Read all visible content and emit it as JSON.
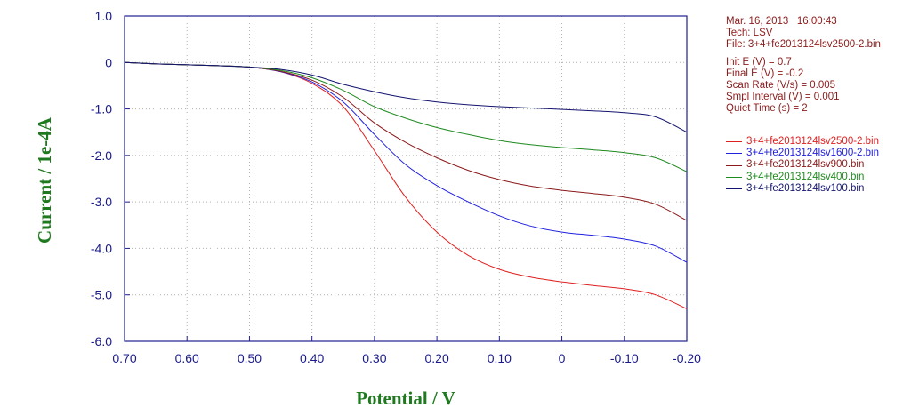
{
  "info": {
    "date_line": "Mar. 16, 2013   16:00:43",
    "tech_line": "Tech: LSV",
    "file_line": "File: 3+4+fe2013124lsv2500-2.bin",
    "init_e": "Init E (V) = 0.7",
    "final_e": "Final E (V) = -0.2",
    "scan_rate": "Scan Rate (V/s) = 0.005",
    "smpl_interval": "Smpl Interval (V) = 0.001",
    "quiet_time": "Quiet Time (s) = 2"
  },
  "chart_data": {
    "type": "line",
    "title": "",
    "xlabel": "Potential / V",
    "ylabel": "Current / 1e-4A",
    "xlim": [
      0.7,
      -0.2
    ],
    "ylim": [
      -6.0,
      1.0
    ],
    "x_reversed": true,
    "grid": "dotted",
    "x_ticks": [
      {
        "value": 0.7,
        "label": "0.70"
      },
      {
        "value": 0.6,
        "label": "0.60"
      },
      {
        "value": 0.5,
        "label": "0.50"
      },
      {
        "value": 0.4,
        "label": "0.40"
      },
      {
        "value": 0.3,
        "label": "0.30"
      },
      {
        "value": 0.2,
        "label": "0.20"
      },
      {
        "value": 0.1,
        "label": "0.10"
      },
      {
        "value": 0.0,
        "label": "0"
      },
      {
        "value": -0.1,
        "label": "-0.10"
      },
      {
        "value": -0.2,
        "label": "-0.20"
      }
    ],
    "y_ticks": [
      {
        "value": 1.0,
        "label": "1.0"
      },
      {
        "value": 0.0,
        "label": "0"
      },
      {
        "value": -1.0,
        "label": "-1.0"
      },
      {
        "value": -2.0,
        "label": "-2.0"
      },
      {
        "value": -3.0,
        "label": "-3.0"
      },
      {
        "value": -4.0,
        "label": "-4.0"
      },
      {
        "value": -5.0,
        "label": "-5.0"
      },
      {
        "value": -6.0,
        "label": "-6.0"
      }
    ],
    "legend_position": "right",
    "series": [
      {
        "name": "3+4+fe2013124lsv2500-2.bin",
        "color": "#e02020",
        "x": [
          0.7,
          0.65,
          0.6,
          0.55,
          0.5,
          0.45,
          0.4,
          0.35,
          0.3,
          0.25,
          0.2,
          0.15,
          0.1,
          0.05,
          0.0,
          -0.05,
          -0.1,
          -0.15,
          -0.2
        ],
        "y": [
          0.0,
          -0.03,
          -0.05,
          -0.07,
          -0.1,
          -0.2,
          -0.45,
          -0.95,
          -1.9,
          -2.9,
          -3.65,
          -4.15,
          -4.45,
          -4.62,
          -4.72,
          -4.8,
          -4.87,
          -5.0,
          -5.3
        ]
      },
      {
        "name": "3+4+fe2013124lsv1600-2.bin",
        "color": "#2020e0",
        "x": [
          0.7,
          0.65,
          0.6,
          0.55,
          0.5,
          0.45,
          0.4,
          0.35,
          0.3,
          0.25,
          0.2,
          0.15,
          0.1,
          0.05,
          0.0,
          -0.05,
          -0.1,
          -0.15,
          -0.2
        ],
        "y": [
          0.0,
          -0.03,
          -0.05,
          -0.07,
          -0.1,
          -0.2,
          -0.42,
          -0.85,
          -1.55,
          -2.2,
          -2.65,
          -3.0,
          -3.3,
          -3.52,
          -3.65,
          -3.72,
          -3.8,
          -3.95,
          -4.3
        ]
      },
      {
        "name": "3+4+fe2013124lsv900.bin",
        "color": "#8b1a1a",
        "x": [
          0.7,
          0.65,
          0.6,
          0.55,
          0.5,
          0.45,
          0.4,
          0.35,
          0.3,
          0.25,
          0.2,
          0.15,
          0.1,
          0.05,
          0.0,
          -0.05,
          -0.1,
          -0.15,
          -0.2
        ],
        "y": [
          0.0,
          -0.03,
          -0.05,
          -0.07,
          -0.1,
          -0.19,
          -0.38,
          -0.75,
          -1.3,
          -1.72,
          -2.05,
          -2.32,
          -2.52,
          -2.66,
          -2.75,
          -2.82,
          -2.9,
          -3.05,
          -3.4
        ]
      },
      {
        "name": "3+4+fe2013124lsv400.bin",
        "color": "#1f8a1f",
        "x": [
          0.7,
          0.65,
          0.6,
          0.55,
          0.5,
          0.45,
          0.4,
          0.35,
          0.3,
          0.25,
          0.2,
          0.15,
          0.1,
          0.05,
          0.0,
          -0.05,
          -0.1,
          -0.15,
          -0.2
        ],
        "y": [
          0.0,
          -0.03,
          -0.05,
          -0.07,
          -0.1,
          -0.17,
          -0.33,
          -0.6,
          -0.95,
          -1.2,
          -1.4,
          -1.55,
          -1.68,
          -1.77,
          -1.83,
          -1.88,
          -1.94,
          -2.05,
          -2.35
        ]
      },
      {
        "name": "3+4+fe2013124lsv100.bin",
        "color": "#141470",
        "x": [
          0.7,
          0.65,
          0.6,
          0.55,
          0.5,
          0.45,
          0.4,
          0.35,
          0.3,
          0.25,
          0.2,
          0.15,
          0.1,
          0.05,
          0.0,
          -0.05,
          -0.1,
          -0.15,
          -0.2
        ],
        "y": [
          0.0,
          -0.03,
          -0.05,
          -0.07,
          -0.1,
          -0.15,
          -0.27,
          -0.47,
          -0.63,
          -0.76,
          -0.85,
          -0.91,
          -0.95,
          -0.98,
          -1.01,
          -1.04,
          -1.08,
          -1.17,
          -1.5
        ]
      }
    ]
  }
}
